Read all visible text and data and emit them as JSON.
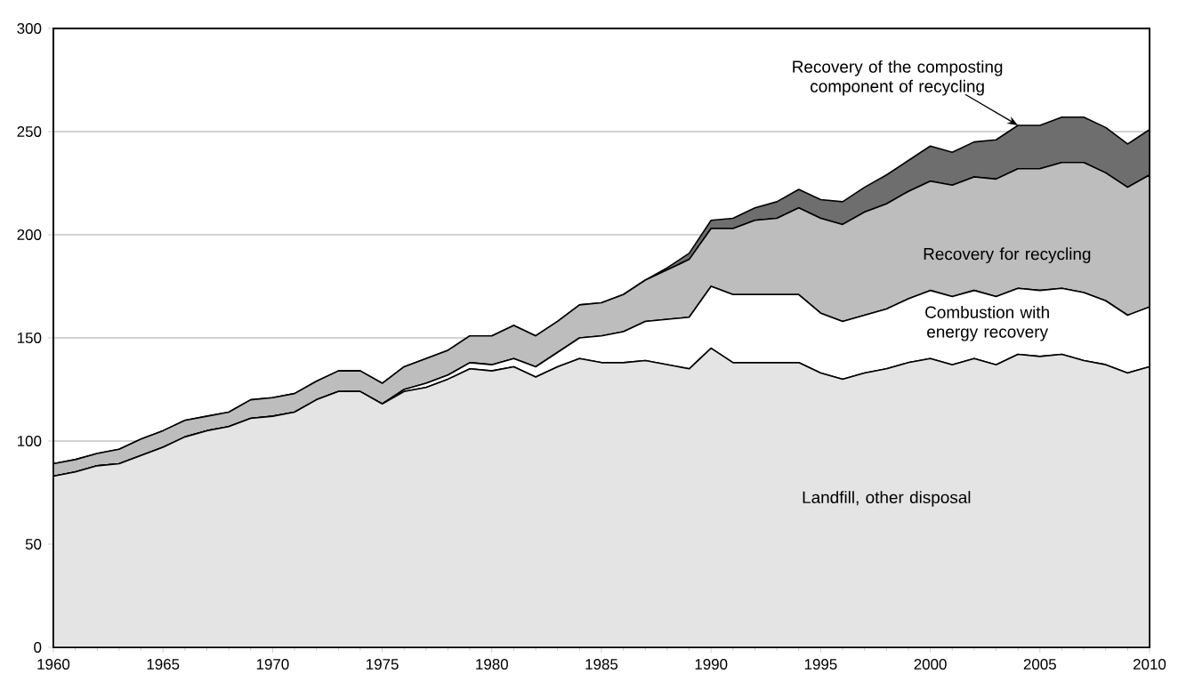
{
  "chart_data": {
    "type": "area",
    "stacked": true,
    "grid": "y",
    "x": [
      1960,
      1961,
      1962,
      1963,
      1964,
      1965,
      1966,
      1967,
      1968,
      1969,
      1970,
      1971,
      1972,
      1973,
      1974,
      1975,
      1976,
      1977,
      1978,
      1979,
      1980,
      1981,
      1982,
      1983,
      1984,
      1985,
      1986,
      1987,
      1988,
      1989,
      1990,
      1991,
      1992,
      1993,
      1994,
      1995,
      1996,
      1997,
      1998,
      1999,
      2000,
      2001,
      2002,
      2003,
      2004,
      2005,
      2006,
      2007,
      2008,
      2009,
      2010
    ],
    "xlim": [
      1960,
      2010
    ],
    "xticks": [
      1960,
      1965,
      1970,
      1975,
      1980,
      1985,
      1990,
      1995,
      2000,
      2005,
      2010
    ],
    "ylim": [
      0,
      300
    ],
    "yticks": [
      0,
      50,
      100,
      150,
      200,
      250,
      300
    ],
    "series": [
      {
        "name": "Landfill, other disposal",
        "color": "#e4e4e4",
        "values": [
          83,
          85,
          88,
          89,
          93,
          97,
          102,
          105,
          107,
          111,
          112,
          114,
          120,
          124,
          124,
          118,
          124,
          126,
          130,
          135,
          134,
          136,
          131,
          136,
          140,
          138,
          138,
          139,
          137,
          135,
          145,
          138,
          138,
          138,
          138,
          133,
          130,
          133,
          135,
          138,
          140,
          137,
          140,
          137,
          142,
          141,
          142,
          139,
          137,
          133,
          136
        ]
      },
      {
        "name": "Combustion with energy recovery",
        "color": "#ffffff",
        "values": [
          0,
          0,
          0,
          0,
          0,
          0,
          0,
          0,
          0,
          0,
          0,
          0,
          0,
          0,
          0,
          0,
          1,
          2,
          2,
          3,
          3,
          4,
          5,
          7,
          10,
          13,
          15,
          19,
          22,
          25,
          30,
          33,
          33,
          33,
          33,
          29,
          28,
          28,
          29,
          31,
          33,
          33,
          33,
          33,
          32,
          32,
          32,
          33,
          31,
          28,
          29
        ]
      },
      {
        "name": "Recovery for recycling",
        "color": "#bdbdbd",
        "values": [
          6,
          6,
          6,
          7,
          8,
          8,
          8,
          7,
          7,
          9,
          9,
          9,
          9,
          10,
          10,
          10,
          11,
          12,
          12,
          13,
          14,
          16,
          15,
          15,
          16,
          16,
          18,
          20,
          24,
          28,
          28,
          32,
          36,
          37,
          42,
          46,
          47,
          50,
          51,
          52,
          53,
          54,
          55,
          57,
          58,
          59,
          61,
          63,
          62,
          62,
          64
        ]
      },
      {
        "name": "Recovery of the composting component of recycling",
        "color": "#6e6e6e",
        "values": [
          0,
          0,
          0,
          0,
          0,
          0,
          0,
          0,
          0,
          0,
          0,
          0,
          0,
          0,
          0,
          0,
          0,
          0,
          0,
          0,
          0,
          0,
          0,
          0,
          0,
          0,
          0,
          0,
          1,
          3,
          4,
          5,
          6,
          8,
          9,
          9,
          11,
          12,
          14,
          15,
          17,
          16,
          17,
          19,
          21,
          21,
          22,
          22,
          22,
          21,
          22
        ]
      }
    ]
  }
}
